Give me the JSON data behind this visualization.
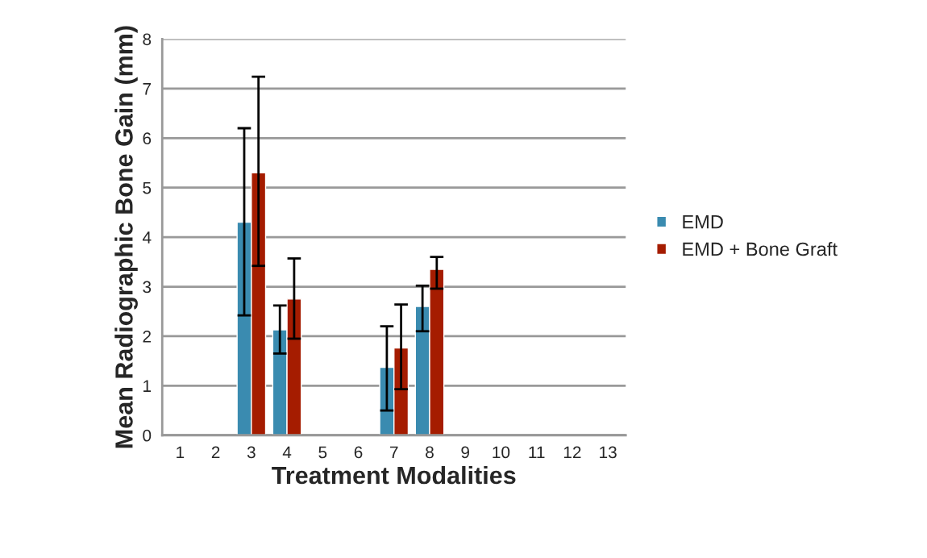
{
  "chart_data": {
    "type": "bar",
    "xlabel": "Treatment Modalities",
    "ylabel": "Mean Radiographic Bone Gain (mm)",
    "categories": [
      "1",
      "2",
      "3",
      "4",
      "5",
      "6",
      "7",
      "8",
      "9",
      "10",
      "11",
      "12",
      "13"
    ],
    "series": [
      {
        "name": "EMD",
        "color": "#3a8bb0",
        "values": [
          null,
          null,
          4.3,
          2.13,
          null,
          null,
          1.37,
          2.6,
          null,
          null,
          null,
          null,
          null
        ],
        "errors": [
          null,
          null,
          [
            2.42,
            6.2
          ],
          [
            1.65,
            2.62
          ],
          null,
          null,
          [
            0.5,
            2.2
          ],
          [
            2.1,
            3.02
          ],
          null,
          null,
          null,
          null,
          null
        ]
      },
      {
        "name": "EMD + Bone Graft",
        "color": "#a51c00",
        "values": [
          null,
          null,
          5.3,
          2.75,
          null,
          null,
          1.76,
          3.35,
          null,
          null,
          null,
          null,
          null
        ],
        "errors": [
          null,
          null,
          [
            3.42,
            7.24
          ],
          [
            1.95,
            3.57
          ],
          null,
          null,
          [
            0.93,
            2.64
          ],
          [
            2.96,
            3.6
          ],
          null,
          null,
          null,
          null,
          null
        ]
      }
    ],
    "ylim": [
      0,
      8
    ],
    "yticks": [
      0,
      1,
      2,
      3,
      4,
      5,
      6,
      7,
      8
    ],
    "grid": "y",
    "legend": "right"
  }
}
